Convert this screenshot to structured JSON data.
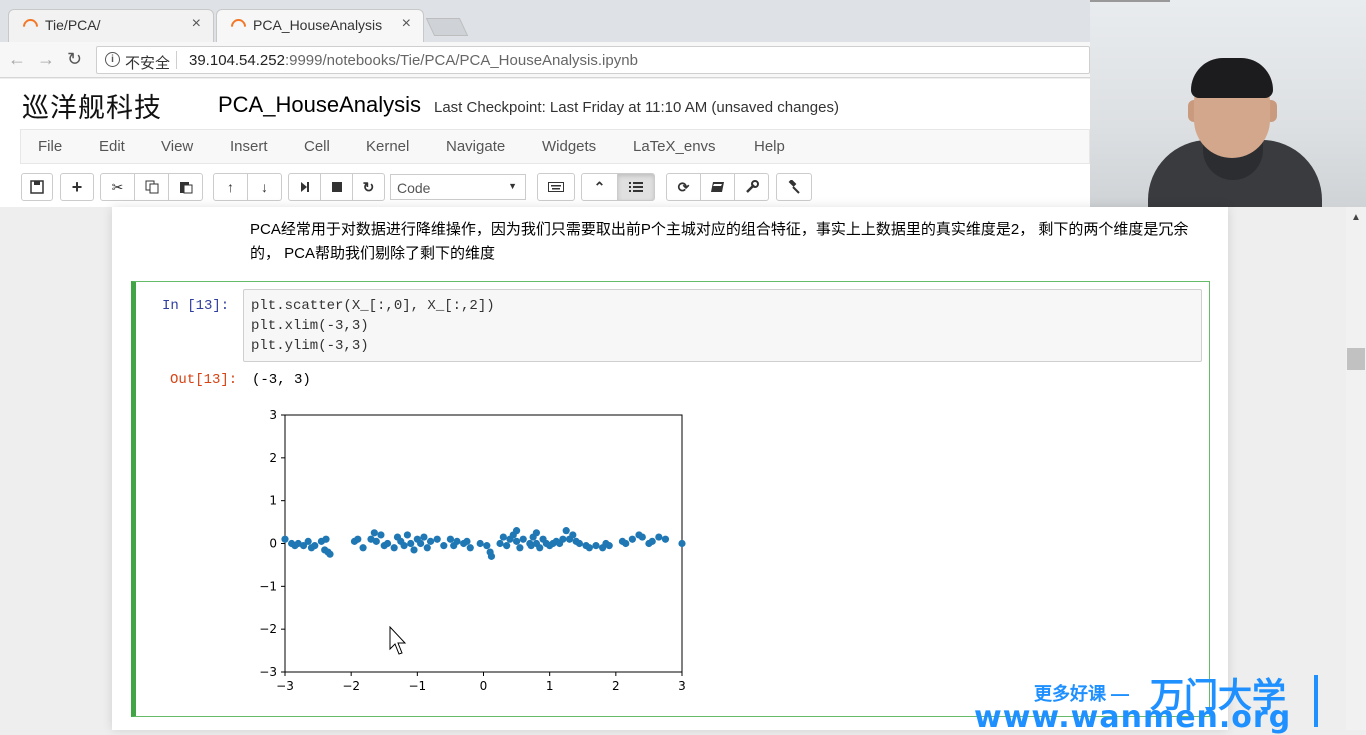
{
  "browser": {
    "tabs": [
      {
        "title": "Tie/PCA/",
        "close": "×"
      },
      {
        "title": "PCA_HouseAnalysis",
        "close": "×"
      }
    ],
    "insecure_label": "不安全",
    "url_host": "39.104.54.252",
    "url_rest": ":9999/notebooks/Tie/PCA/PCA_HouseAnalysis.ipynb"
  },
  "jupyter": {
    "logo_text": "巡洋舰科技",
    "notebook_name": "PCA_HouseAnalysis",
    "checkpoint": "Last Checkpoint: Last Friday at 11:10 AM (unsaved changes)",
    "menu": [
      "File",
      "Edit",
      "View",
      "Insert",
      "Cell",
      "Kernel",
      "Navigate",
      "Widgets",
      "LaTeX_envs",
      "Help"
    ],
    "cell_type": "Code"
  },
  "notebook": {
    "markdown": "PCA经常用于对数据进行降维操作，因为我们只需要取出前P个主城对应的组合特征，事实上上数据里的真实维度是2， 剩下的两个维度是冗余的， PCA帮助我们剔除了剩下的维度",
    "in_prompt": "In  [13]:",
    "code": [
      "plt.scatter(X_[:,0], X_[:,2])",
      "plt.xlim(-3,3)",
      "plt.ylim(-3,3)"
    ],
    "out_prompt": "Out[13]:",
    "output_text": "(-3, 3)"
  },
  "chart_data": {
    "type": "scatter",
    "xlim": [
      -3,
      3
    ],
    "ylim": [
      -3,
      3
    ],
    "xticks": [
      "−3",
      "−2",
      "−1",
      "0",
      "1",
      "2",
      "3"
    ],
    "yticks": [
      "3",
      "2",
      "1",
      "0",
      "−1",
      "−2",
      "−3"
    ],
    "color": "#1f77b4",
    "points": [
      [
        -3.0,
        0.1
      ],
      [
        -2.9,
        0.0
      ],
      [
        -2.85,
        -0.05
      ],
      [
        -2.8,
        0.0
      ],
      [
        -2.72,
        -0.05
      ],
      [
        -2.65,
        0.05
      ],
      [
        -2.6,
        -0.1
      ],
      [
        -2.55,
        -0.05
      ],
      [
        -2.45,
        0.05
      ],
      [
        -2.4,
        -0.15
      ],
      [
        -2.38,
        0.1
      ],
      [
        -2.35,
        -0.2
      ],
      [
        -2.32,
        -0.25
      ],
      [
        -1.95,
        0.05
      ],
      [
        -1.9,
        0.1
      ],
      [
        -1.82,
        -0.1
      ],
      [
        -1.7,
        0.1
      ],
      [
        -1.65,
        0.25
      ],
      [
        -1.62,
        0.05
      ],
      [
        -1.55,
        0.2
      ],
      [
        -1.5,
        -0.05
      ],
      [
        -1.45,
        0.0
      ],
      [
        -1.35,
        -0.1
      ],
      [
        -1.3,
        0.15
      ],
      [
        -1.25,
        0.05
      ],
      [
        -1.2,
        -0.05
      ],
      [
        -1.15,
        0.2
      ],
      [
        -1.1,
        0.0
      ],
      [
        -1.05,
        -0.15
      ],
      [
        -1.0,
        0.1
      ],
      [
        -0.95,
        0.0
      ],
      [
        -0.9,
        0.15
      ],
      [
        -0.85,
        -0.1
      ],
      [
        -0.8,
        0.05
      ],
      [
        -0.7,
        0.1
      ],
      [
        -0.6,
        -0.05
      ],
      [
        -0.5,
        0.1
      ],
      [
        -0.45,
        -0.05
      ],
      [
        -0.4,
        0.05
      ],
      [
        -0.3,
        0.0
      ],
      [
        -0.25,
        0.05
      ],
      [
        -0.2,
        -0.1
      ],
      [
        -0.05,
        0.0
      ],
      [
        0.05,
        -0.05
      ],
      [
        0.1,
        -0.2
      ],
      [
        0.12,
        -0.3
      ],
      [
        0.25,
        0.0
      ],
      [
        0.3,
        0.15
      ],
      [
        0.35,
        -0.05
      ],
      [
        0.4,
        0.1
      ],
      [
        0.45,
        0.2
      ],
      [
        0.5,
        0.05
      ],
      [
        0.5,
        0.3
      ],
      [
        0.55,
        -0.1
      ],
      [
        0.6,
        0.1
      ],
      [
        0.7,
        0.0
      ],
      [
        0.72,
        -0.05
      ],
      [
        0.75,
        0.15
      ],
      [
        0.8,
        0.0
      ],
      [
        0.8,
        0.25
      ],
      [
        0.85,
        -0.1
      ],
      [
        0.9,
        0.1
      ],
      [
        0.95,
        0.0
      ],
      [
        1.0,
        -0.05
      ],
      [
        1.05,
        0.0
      ],
      [
        1.1,
        0.05
      ],
      [
        1.15,
        0.0
      ],
      [
        1.2,
        0.1
      ],
      [
        1.25,
        0.3
      ],
      [
        1.3,
        0.1
      ],
      [
        1.35,
        0.2
      ],
      [
        1.4,
        0.05
      ],
      [
        1.45,
        0.0
      ],
      [
        1.55,
        -0.05
      ],
      [
        1.6,
        -0.1
      ],
      [
        1.7,
        -0.05
      ],
      [
        1.8,
        -0.1
      ],
      [
        1.85,
        0.0
      ],
      [
        1.9,
        -0.05
      ],
      [
        2.1,
        0.05
      ],
      [
        2.15,
        0.0
      ],
      [
        2.25,
        0.1
      ],
      [
        2.35,
        0.2
      ],
      [
        2.4,
        0.15
      ],
      [
        2.5,
        0.0
      ],
      [
        2.55,
        0.05
      ],
      [
        2.65,
        0.15
      ],
      [
        2.75,
        0.1
      ],
      [
        3.0,
        0.0
      ]
    ]
  },
  "watermark": {
    "line1": "更多好课 —",
    "brand": "万门大学",
    "url": "www.wanmen.org"
  }
}
